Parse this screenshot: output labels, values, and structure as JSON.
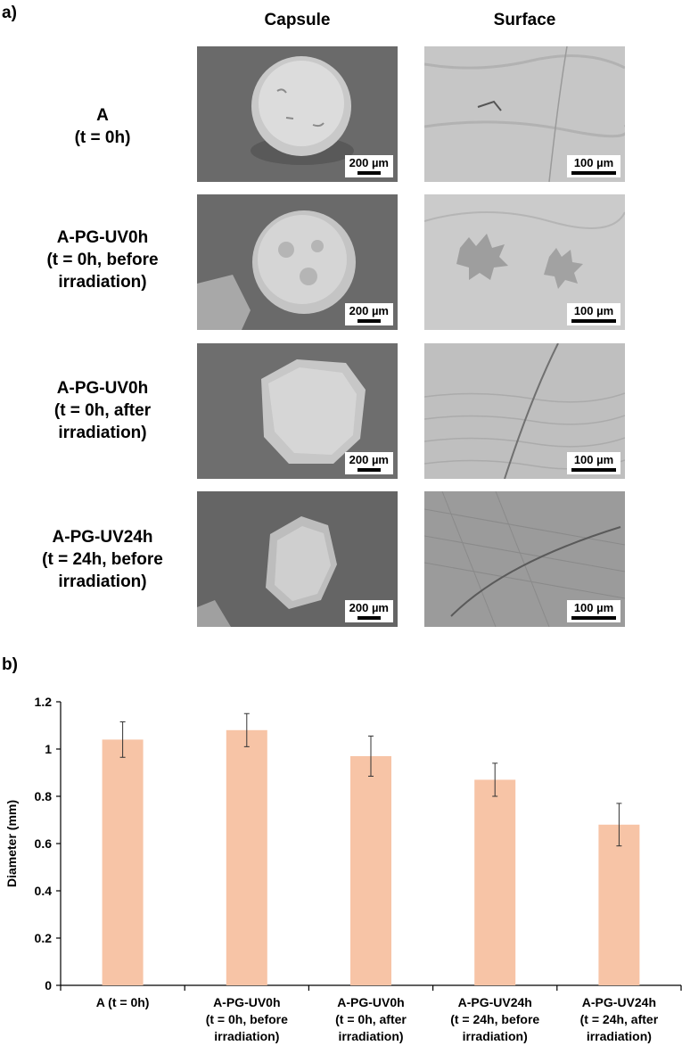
{
  "panel_a": {
    "label": "a)",
    "columns": [
      "Capsule",
      "Surface"
    ],
    "rows": [
      {
        "label_lines": [
          "A",
          "(t = 0h)"
        ],
        "capsule_scale": "200 µm",
        "surface_scale": "100 µm"
      },
      {
        "label_lines": [
          "A-PG-UV0h",
          "(t = 0h, before",
          "irradiation)"
        ],
        "capsule_scale": "200 µm",
        "surface_scale": "100 µm"
      },
      {
        "label_lines": [
          "A-PG-UV0h",
          "(t = 0h, after",
          "irradiation)"
        ],
        "capsule_scale": "200 µm",
        "surface_scale": "100 µm"
      },
      {
        "label_lines": [
          "A-PG-UV24h",
          "(t = 24h, before",
          "irradiation)"
        ],
        "capsule_scale": "200 µm",
        "surface_scale": "100 µm"
      }
    ]
  },
  "panel_b": {
    "label": "b)"
  },
  "colors": {
    "bar": "#f7c4a6",
    "sem_background": "#6a6a6a",
    "capsule": "#d2d2d2",
    "surface": "#c8c8c8"
  },
  "chart_data": {
    "type": "bar",
    "categories": [
      [
        "A (t = 0h)"
      ],
      [
        "A-PG-UV0h",
        "(t = 0h, before",
        "irradiation)"
      ],
      [
        "A-PG-UV0h",
        "(t = 0h, after",
        "irradiation)"
      ],
      [
        "A-PG-UV24h",
        "(t = 24h, before",
        "irradiation)"
      ],
      [
        "A-PG-UV24h",
        "(t = 24h, after",
        "irradiation)"
      ]
    ],
    "values": [
      1.04,
      1.08,
      0.97,
      0.87,
      0.68
    ],
    "errors": [
      0.075,
      0.07,
      0.085,
      0.07,
      0.09
    ],
    "ylabel": "Diameter (mm)",
    "ylim": [
      0,
      1.2
    ],
    "yticks": [
      "0",
      "0.2",
      "0.4",
      "0.6",
      "0.8",
      "1",
      "1.2"
    ],
    "ytick_values": [
      0,
      0.2,
      0.4,
      0.6,
      0.8,
      1.0,
      1.2
    ],
    "grid": false
  }
}
